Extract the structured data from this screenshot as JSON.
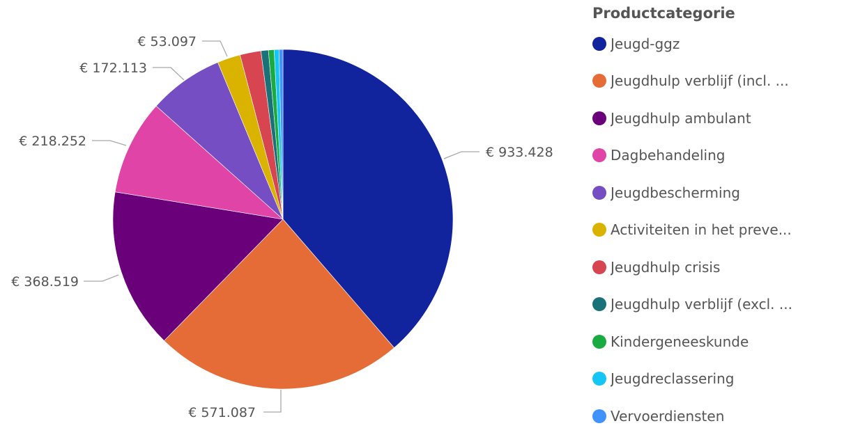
{
  "chart_data": {
    "type": "pie",
    "legend_title": "Productcategorie",
    "legend_position": "right",
    "series": [
      {
        "name": "Jeugd-ggz",
        "value": 933428,
        "label": "€ 933.428",
        "color": "#12239E"
      },
      {
        "name": "Jeugdhulp verblijf (incl. ...",
        "value": 571087,
        "label": "€ 571.087",
        "color": "#E66C37"
      },
      {
        "name": "Jeugdhulp ambulant",
        "value": 368519,
        "label": "€ 368.519",
        "color": "#6B007B"
      },
      {
        "name": "Dagbehandeling",
        "value": 218252,
        "label": "€ 218.252",
        "color": "#E044A7"
      },
      {
        "name": "Jeugdbescherming",
        "value": 172113,
        "label": "€ 172.113",
        "color": "#744EC2"
      },
      {
        "name": "Activiteiten in het preve...",
        "value": 53097,
        "label": "€ 53.097",
        "color": "#D9B300"
      },
      {
        "name": "Jeugdhulp crisis",
        "value": 48000,
        "label": "",
        "color": "#D64550"
      },
      {
        "name": "Jeugdhulp verblijf (excl. ...",
        "value": 17000,
        "label": "",
        "color": "#197278"
      },
      {
        "name": "Kindergeneeskunde",
        "value": 13000,
        "label": "",
        "color": "#1AAB40"
      },
      {
        "name": "Jeugdreclassering",
        "value": 11000,
        "label": "",
        "color": "#15C6F4"
      },
      {
        "name": "Vervoerdiensten",
        "value": 9000,
        "label": "",
        "color": "#4092FF"
      }
    ]
  }
}
